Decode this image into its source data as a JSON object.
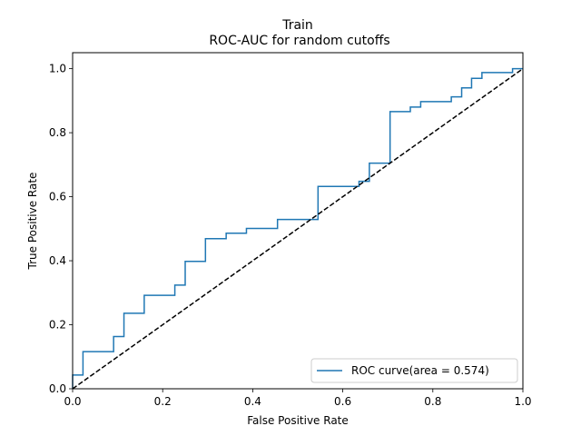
{
  "chart_data": {
    "type": "line",
    "title": "Train",
    "subtitle": "ROC-AUC for random cutoffs",
    "xlabel": "False Positive Rate",
    "ylabel": "True Positive Rate",
    "xlim": [
      0.0,
      1.0
    ],
    "ylim": [
      0.0,
      1.05
    ],
    "x_ticks": [
      "0.0",
      "0.2",
      "0.4",
      "0.6",
      "0.8",
      "1.0"
    ],
    "y_ticks": [
      "0.0",
      "0.2",
      "0.4",
      "0.6",
      "0.8",
      "1.0"
    ],
    "grid": false,
    "legend_position": "lower-right",
    "series": [
      {
        "name": "ROC curve(area = 0.574)",
        "color": "#1f77b4",
        "style": "steps",
        "x": [
          0.0,
          0.0,
          0.023,
          0.023,
          0.091,
          0.091,
          0.114,
          0.114,
          0.159,
          0.159,
          0.227,
          0.227,
          0.25,
          0.25,
          0.295,
          0.295,
          0.341,
          0.341,
          0.386,
          0.386,
          0.455,
          0.455,
          0.545,
          0.545,
          0.636,
          0.636,
          0.659,
          0.659,
          0.705,
          0.705,
          0.75,
          0.75,
          0.773,
          0.773,
          0.841,
          0.841,
          0.864,
          0.864,
          0.886,
          0.886,
          0.909,
          0.909,
          0.977,
          0.977,
          1.0
        ],
        "y": [
          0.0,
          0.043,
          0.043,
          0.116,
          0.116,
          0.163,
          0.163,
          0.236,
          0.236,
          0.292,
          0.292,
          0.324,
          0.324,
          0.398,
          0.398,
          0.469,
          0.469,
          0.486,
          0.486,
          0.501,
          0.501,
          0.529,
          0.529,
          0.632,
          0.632,
          0.648,
          0.648,
          0.705,
          0.705,
          0.866,
          0.866,
          0.88,
          0.88,
          0.897,
          0.897,
          0.912,
          0.912,
          0.94,
          0.94,
          0.97,
          0.97,
          0.988,
          0.988,
          1.0,
          1.0
        ]
      },
      {
        "name": "",
        "color": "#000000",
        "style": "dashed",
        "x": [
          0.0,
          1.0
        ],
        "y": [
          0.0,
          1.0
        ]
      }
    ]
  }
}
